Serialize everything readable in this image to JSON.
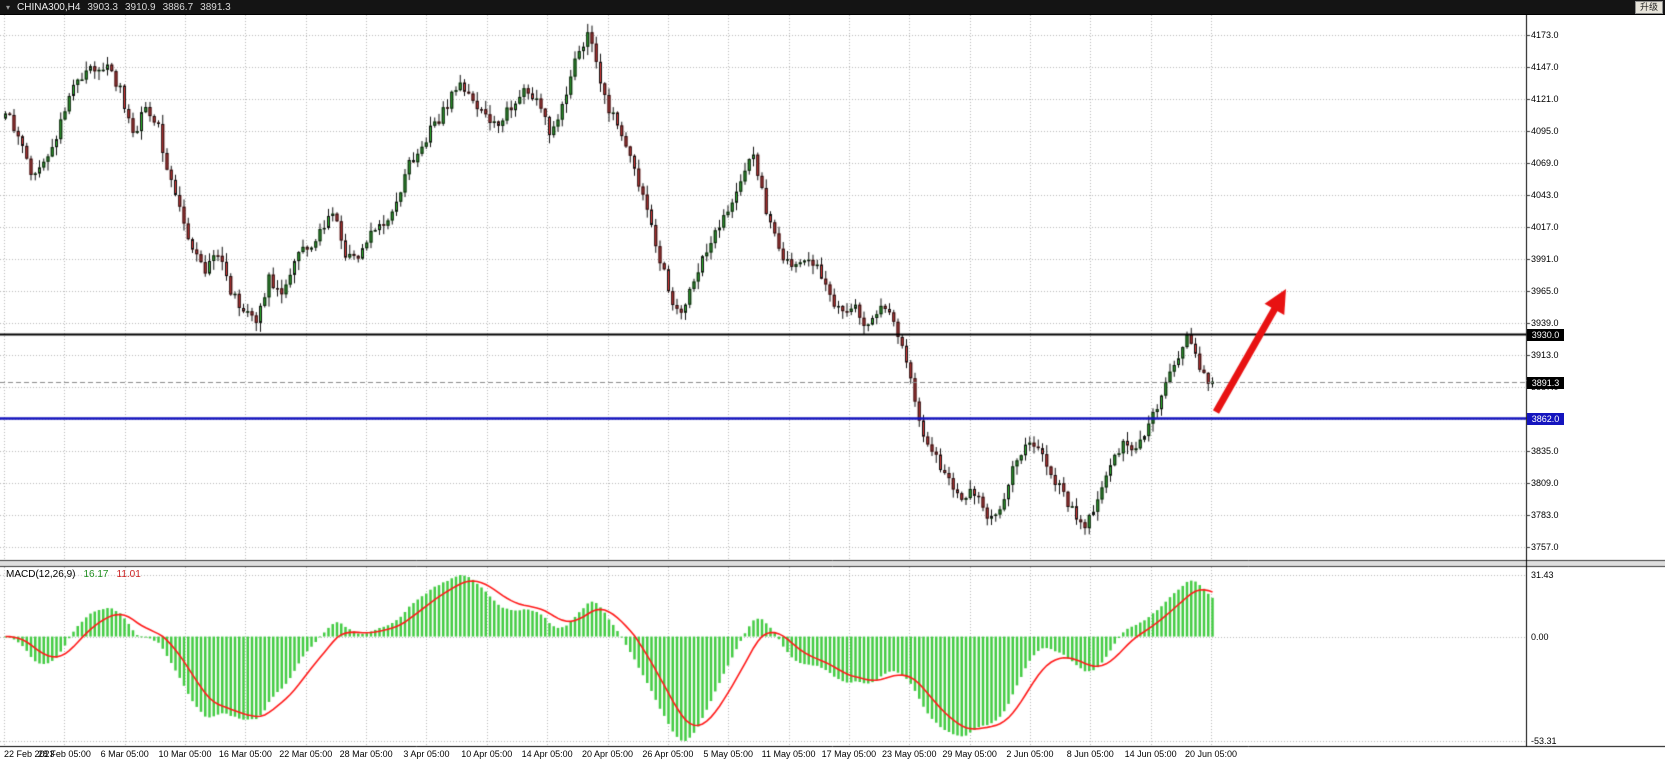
{
  "header": {
    "symbol": "CHINA300,H4",
    "open": "3903.3",
    "high": "3910.9",
    "low": "3886.7",
    "close": "3891.3",
    "upgrade_label": "升级"
  },
  "chart_data": [
    {
      "type": "candlestick",
      "symbol": "CHINA300",
      "timeframe": "H4",
      "last_quote": {
        "open": 3903.3,
        "high": 3910.9,
        "low": 3886.7,
        "close": 3891.3
      },
      "y_axis": {
        "max": 4173.0,
        "min": 3757.0,
        "step": 26.0,
        "labels": [
          "4173.0",
          "4147.0",
          "4121.0",
          "4095.0",
          "4069.0",
          "4043.0",
          "4017.0",
          "3991.0",
          "3965.0",
          "3939.0",
          "3913.0",
          "3887.0",
          "3861.0",
          "3835.0",
          "3809.0",
          "3783.0",
          "3757.0"
        ]
      },
      "x_labels": [
        "22 Feb 2023",
        "28 Feb 05:00",
        "6 Mar 05:00",
        "10 Mar 05:00",
        "16 Mar 05:00",
        "22 Mar 05:00",
        "28 Mar 05:00",
        "3 Apr 05:00",
        "10 Apr 05:00",
        "14 Apr 05:00",
        "20 Apr 05:00",
        "26 Apr 05:00",
        "5 May 05:00",
        "11 May 05:00",
        "17 May 05:00",
        "23 May 05:00",
        "29 May 05:00",
        "2 Jun 05:00",
        "8 Jun 05:00",
        "14 Jun 05:00",
        "20 Jun 05:00"
      ],
      "levels": [
        {
          "name": "resistance",
          "price": 3930.0,
          "label": "3930.0",
          "color": "#000000",
          "badge_color": "#000000",
          "style": "solid",
          "width": 2
        },
        {
          "name": "current",
          "price": 3891.3,
          "label": "3891.3",
          "color": "#8a8a8a",
          "badge_color": "#000000",
          "style": "dashed",
          "width": 1
        },
        {
          "name": "support",
          "price": 3862.0,
          "label": "3862.0",
          "color": "#1414be",
          "badge_color": "#1414be",
          "style": "solid",
          "width": 2.5
        }
      ],
      "candle_count": 285,
      "price_path_anchors": [
        [
          0,
          4112
        ],
        [
          3,
          4090
        ],
        [
          6,
          4060
        ],
        [
          9,
          4072
        ],
        [
          12,
          4092
        ],
        [
          16,
          4135
        ],
        [
          20,
          4146
        ],
        [
          24,
          4150
        ],
        [
          27,
          4128
        ],
        [
          30,
          4092
        ],
        [
          33,
          4114
        ],
        [
          36,
          4100
        ],
        [
          38,
          4062
        ],
        [
          41,
          4030
        ],
        [
          44,
          4000
        ],
        [
          47,
          3980
        ],
        [
          50,
          3996
        ],
        [
          53,
          3966
        ],
        [
          56,
          3948
        ],
        [
          59,
          3940
        ],
        [
          62,
          3974
        ],
        [
          65,
          3960
        ],
        [
          68,
          3990
        ],
        [
          71,
          4000
        ],
        [
          74,
          4014
        ],
        [
          77,
          4030
        ],
        [
          80,
          3996
        ],
        [
          83,
          3990
        ],
        [
          86,
          4010
        ],
        [
          89,
          4020
        ],
        [
          92,
          4036
        ],
        [
          95,
          4068
        ],
        [
          99,
          4090
        ],
        [
          103,
          4110
        ],
        [
          107,
          4136
        ],
        [
          110,
          4120
        ],
        [
          113,
          4106
        ],
        [
          116,
          4100
        ],
        [
          119,
          4116
        ],
        [
          122,
          4130
        ],
        [
          125,
          4120
        ],
        [
          128,
          4094
        ],
        [
          131,
          4116
        ],
        [
          134,
          4154
        ],
        [
          137,
          4174
        ],
        [
          139,
          4150
        ],
        [
          142,
          4112
        ],
        [
          145,
          4094
        ],
        [
          148,
          4060
        ],
        [
          151,
          4030
        ],
        [
          154,
          3990
        ],
        [
          157,
          3956
        ],
        [
          159,
          3944
        ],
        [
          162,
          3976
        ],
        [
          165,
          4000
        ],
        [
          168,
          4020
        ],
        [
          171,
          4040
        ],
        [
          174,
          4060
        ],
        [
          176,
          4076
        ],
        [
          179,
          4030
        ],
        [
          182,
          3996
        ],
        [
          185,
          3984
        ],
        [
          188,
          3992
        ],
        [
          191,
          3984
        ],
        [
          194,
          3960
        ],
        [
          197,
          3946
        ],
        [
          200,
          3950
        ],
        [
          203,
          3936
        ],
        [
          206,
          3950
        ],
        [
          209,
          3940
        ],
        [
          212,
          3906
        ],
        [
          214,
          3874
        ],
        [
          216,
          3846
        ],
        [
          219,
          3830
        ],
        [
          222,
          3810
        ],
        [
          225,
          3796
        ],
        [
          228,
          3802
        ],
        [
          231,
          3780
        ],
        [
          234,
          3786
        ],
        [
          237,
          3820
        ],
        [
          240,
          3840
        ],
        [
          243,
          3834
        ],
        [
          246,
          3816
        ],
        [
          249,
          3800
        ],
        [
          252,
          3780
        ],
        [
          254,
          3770
        ],
        [
          257,
          3800
        ],
        [
          260,
          3820
        ],
        [
          263,
          3844
        ],
        [
          266,
          3838
        ],
        [
          269,
          3856
        ],
        [
          272,
          3882
        ],
        [
          275,
          3906
        ],
        [
          278,
          3927
        ],
        [
          280,
          3910
        ],
        [
          282,
          3896
        ],
        [
          284,
          3891.3
        ]
      ],
      "colors": {
        "up": "#2eb82e",
        "down": "#dd3a3a",
        "outline": "#111111",
        "grid": "#b9b9b9",
        "background": "#ffffff"
      },
      "annotation_arrow": {
        "from": [
          1216,
          412
        ],
        "to": [
          1286,
          289
        ],
        "color": "#e81212"
      }
    },
    {
      "type": "bar",
      "name": "MACD(12,26,9)",
      "value_main": "16.17",
      "value_signal": "11.01",
      "params": [
        12,
        26,
        9
      ],
      "y_axis": {
        "max": 31.43,
        "zero": 0.0,
        "min": -53.31,
        "labels": [
          "31.43",
          "0.00",
          "-53.31"
        ]
      },
      "colors": {
        "histogram": "#44cc44",
        "signal": "#ff1a1a"
      }
    }
  ]
}
